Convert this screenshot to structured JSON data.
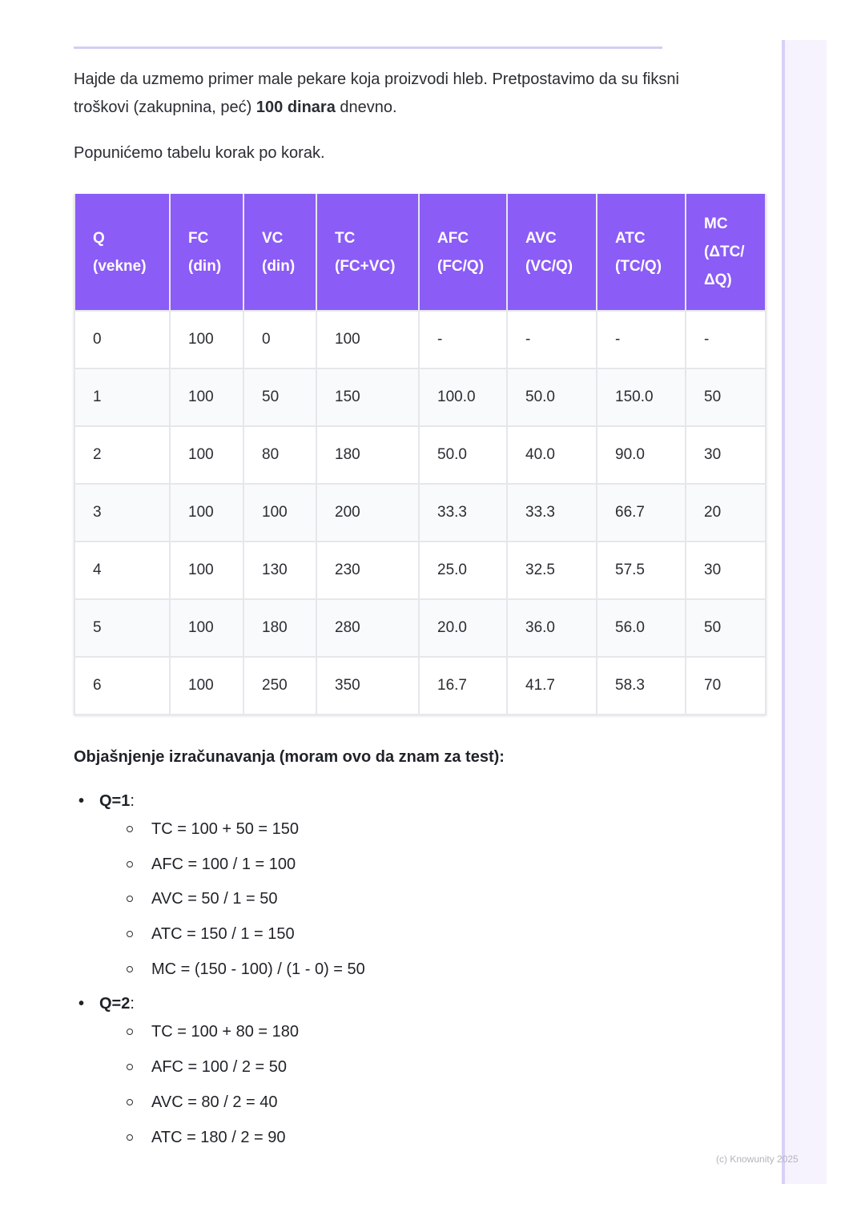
{
  "intro": {
    "text_before": "Hajde da uzmemo primer male pekare koja proizvodi hleb. Pretpostavimo da su fiksni troškovi (zakupnina, peć) ",
    "bold": "100 dinara",
    "text_after": " dnevno."
  },
  "step_text": "Popunićemo tabelu korak po korak.",
  "table": {
    "headers": [
      [
        "Q",
        "(vekne)"
      ],
      [
        "FC",
        "(din)"
      ],
      [
        "VC",
        "(din)"
      ],
      [
        "TC",
        "(FC+VC)"
      ],
      [
        "AFC",
        "(FC/Q)"
      ],
      [
        "AVC",
        "(VC/Q)"
      ],
      [
        "ATC",
        "(TC/Q)"
      ],
      [
        "MC",
        "(ΔTC/",
        "ΔQ)"
      ]
    ],
    "rows": [
      [
        "0",
        "100",
        "0",
        "100",
        "-",
        "-",
        "-",
        "-"
      ],
      [
        "1",
        "100",
        "50",
        "150",
        "100.0",
        "50.0",
        "150.0",
        "50"
      ],
      [
        "2",
        "100",
        "80",
        "180",
        "50.0",
        "40.0",
        "90.0",
        "30"
      ],
      [
        "3",
        "100",
        "100",
        "200",
        "33.3",
        "33.3",
        "66.7",
        "20"
      ],
      [
        "4",
        "100",
        "130",
        "230",
        "25.0",
        "32.5",
        "57.5",
        "30"
      ],
      [
        "5",
        "100",
        "180",
        "280",
        "20.0",
        "36.0",
        "56.0",
        "50"
      ],
      [
        "6",
        "100",
        "250",
        "350",
        "16.7",
        "41.7",
        "58.3",
        "70"
      ]
    ]
  },
  "explain_title": "Objašnjenje izračunavanja (moram ovo da znam za test):",
  "groups": [
    {
      "label": "Q=1",
      "items": [
        "TC = 100 + 50 = 150",
        "AFC = 100 / 1 = 100",
        "AVC = 50 / 1 = 50",
        "ATC = 150 / 1 = 150",
        "MC = (150 - 100) / (1 - 0) = 50"
      ]
    },
    {
      "label": "Q=2",
      "items": [
        "TC = 100 + 80 = 180",
        "AFC = 100 / 2 = 50",
        "AVC = 80 / 2 = 40",
        "ATC = 180 / 2 = 90"
      ]
    }
  ],
  "copyright": "(c) Knowunity 2025",
  "colors": {
    "header": "#8b5cf6",
    "rule": "#d6cdf5"
  }
}
